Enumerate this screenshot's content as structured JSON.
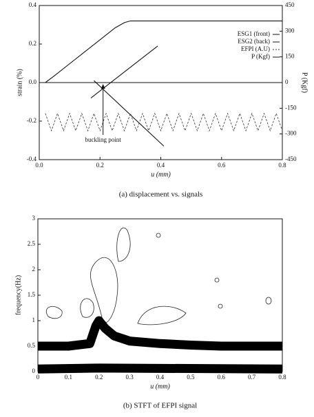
{
  "chart_data": [
    {
      "type": "line",
      "title": "(a) displacement vs. signals",
      "xlabel": "u (mm)",
      "ylabel": "strain (%)",
      "y2label": "P (Kgf)",
      "xlim": [
        0,
        0.8
      ],
      "xticks": [
        {
          "value": 0,
          "label": "0.0"
        },
        0.2,
        0.4,
        0.6,
        0.8
      ],
      "ylim": [
        -0.4,
        0.4
      ],
      "yticks": [
        -0.4,
        -0.2,
        {
          "value": 0,
          "label": "0.0"
        },
        0.2,
        0.4
      ],
      "y2lim": [
        -450,
        450
      ],
      "y2ticks": [
        -450,
        -300,
        -150,
        0,
        150,
        300,
        450
      ],
      "annotations": [
        "buckling point"
      ],
      "series": [
        {
          "name": "ESG1 (front)",
          "color": "#111111",
          "x": [
            0.17,
            0.39
          ],
          "values": [
            -0.08,
            0.19
          ]
        },
        {
          "name": "ESG2 (back)",
          "color": "#111111",
          "x": [
            0.18,
            0.41
          ],
          "values": [
            0.01,
            -0.33
          ]
        },
        {
          "name": "EFPI (A.U)",
          "color": "#333333",
          "dashed": true,
          "x": [
            0.02,
            0.04,
            0.06,
            0.08,
            0.1,
            0.12,
            0.14,
            0.16,
            0.18,
            0.2,
            0.22,
            0.24,
            0.26,
            0.28,
            0.3,
            0.32,
            0.34,
            0.36,
            0.38,
            0.4,
            0.42,
            0.44,
            0.46,
            0.48,
            0.5,
            0.52,
            0.54,
            0.56,
            0.58,
            0.6,
            0.62,
            0.64,
            0.66,
            0.68,
            0.7,
            0.72,
            0.74,
            0.76,
            0.78,
            0.8
          ],
          "values": [
            -0.16,
            -0.25,
            -0.16,
            -0.25,
            -0.16,
            -0.25,
            -0.16,
            -0.25,
            -0.16,
            -0.25,
            -0.16,
            -0.25,
            -0.16,
            -0.25,
            -0.16,
            -0.25,
            -0.16,
            -0.25,
            -0.16,
            -0.25,
            -0.16,
            -0.25,
            -0.16,
            -0.25,
            -0.16,
            -0.25,
            -0.16,
            -0.25,
            -0.16,
            -0.25,
            -0.16,
            -0.25,
            -0.16,
            -0.25,
            -0.16,
            -0.25,
            -0.16,
            -0.25,
            -0.16,
            -0.25
          ]
        },
        {
          "name": "P (Kgf)",
          "color": "#111111",
          "axis": "y2",
          "x": [
            0.02,
            0.05,
            0.1,
            0.15,
            0.2,
            0.25,
            0.28,
            0.3,
            0.8
          ],
          "values": [
            0,
            40,
            110,
            180,
            250,
            320,
            350,
            360,
            360
          ]
        }
      ]
    },
    {
      "type": "contour",
      "title": "(b) STFT of EFPI signal",
      "xlabel": "u (mm)",
      "ylabel": "frequency(Hz)",
      "xlim": [
        0,
        0.8
      ],
      "xticks": [
        0,
        0.1,
        0.2,
        0.3,
        0.4,
        0.5,
        0.6,
        0.7,
        0.8
      ],
      "ylim": [
        0,
        3
      ],
      "yticks": [
        0,
        0.5,
        1,
        1.5,
        2,
        2.5,
        3
      ],
      "bands": [
        {
          "color": "#000000",
          "x": [
            0,
            0.1,
            0.17,
            0.19,
            0.2,
            0.22,
            0.25,
            0.3,
            0.4,
            0.5,
            0.6,
            0.7,
            0.8
          ],
          "values": [
            0.5,
            0.5,
            0.55,
            0.9,
            1.0,
            0.85,
            0.7,
            0.6,
            0.55,
            0.52,
            0.5,
            0.5,
            0.5
          ]
        },
        {
          "color": "#000000",
          "x": [
            0,
            0.2,
            0.8
          ],
          "values": [
            0.05,
            0.07,
            0.05
          ]
        }
      ]
    }
  ]
}
